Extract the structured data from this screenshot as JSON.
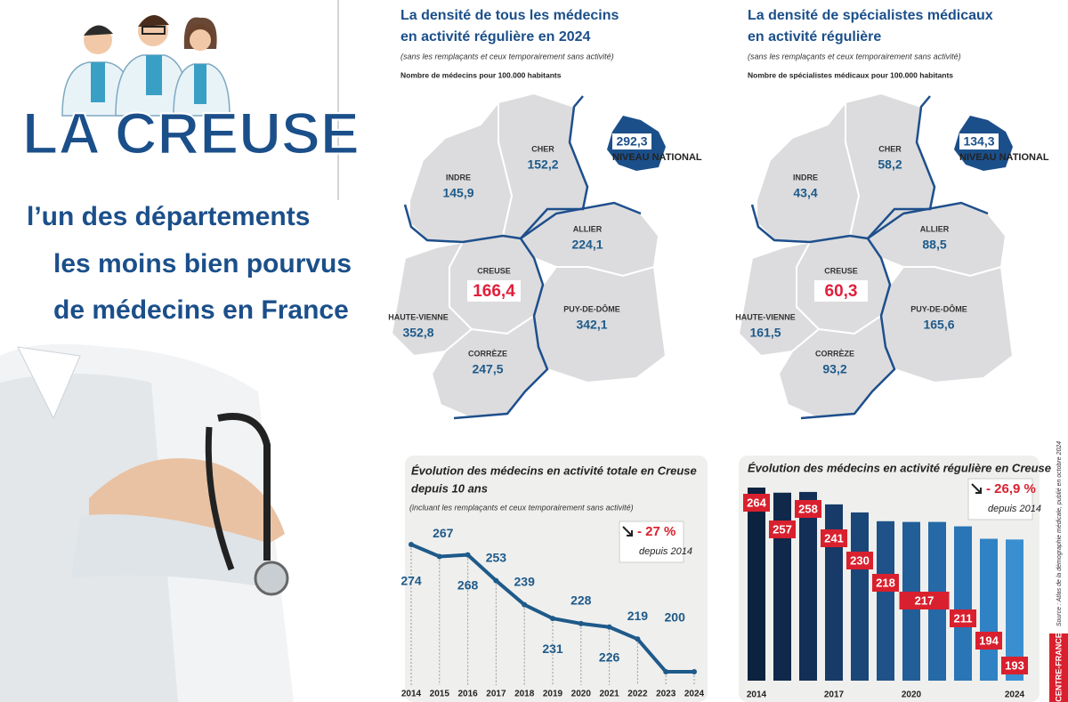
{
  "header": {
    "title": "LA CREUSE",
    "subtitle": [
      "l’un des départements",
      "les moins bien pourvus",
      "de médecins en France"
    ]
  },
  "maps": [
    {
      "title": [
        "La densité de tous les médecins",
        "en activité régulière en 2024"
      ],
      "note": "(sans les remplaçants et ceux temporairement sans activité)",
      "unit": "Nombre de médecins pour 100.000 habitants",
      "national": {
        "value": "292,3",
        "label": "NIVEAU NATIONAL"
      },
      "departments": [
        {
          "name": "CHER",
          "value": "152,2"
        },
        {
          "name": "INDRE",
          "value": "145,9"
        },
        {
          "name": "ALLIER",
          "value": "224,1"
        },
        {
          "name": "CREUSE",
          "value": "166,4"
        },
        {
          "name": "HAUTE-VIENNE",
          "value": "352,8"
        },
        {
          "name": "PUY-DE-DÔME",
          "value": "342,1"
        },
        {
          "name": "CORRÈZE",
          "value": "247,5"
        }
      ]
    },
    {
      "title": [
        "La densité de spécialistes médicaux",
        "en activité régulière"
      ],
      "note": "(sans les remplaçants et ceux temporairement sans activité)",
      "unit": "Nombre de spécialistes médicaux pour 100.000 habitants",
      "national": {
        "value": "134,3",
        "label": "NIVEAU NATIONAL"
      },
      "departments": [
        {
          "name": "CHER",
          "value": "58,2"
        },
        {
          "name": "INDRE",
          "value": "43,4"
        },
        {
          "name": "ALLIER",
          "value": "88,5"
        },
        {
          "name": "CREUSE",
          "value": "60,3"
        },
        {
          "name": "HAUTE-VIENNE",
          "value": "161,5"
        },
        {
          "name": "PUY-DE-DÔME",
          "value": "165,6"
        },
        {
          "name": "CORRÈZE",
          "value": "93,2"
        }
      ]
    }
  ],
  "chart_data": [
    {
      "type": "line",
      "title": [
        "Évolution des médecins en activité totale en Creuse",
        "depuis 10 ans"
      ],
      "subtitle": "(incluant les remplaçants et ceux temporairement sans activité)",
      "annotation": {
        "change": "- 27 %",
        "since": "depuis 2014"
      },
      "categories": [
        "2014",
        "2015",
        "2016",
        "2017",
        "2018",
        "2019",
        "2020",
        "2021",
        "2022",
        "2023",
        "2024"
      ],
      "values": [
        274,
        267,
        268,
        253,
        239,
        231,
        228,
        226,
        219,
        200,
        200
      ],
      "value_labels": [
        "274",
        "267",
        "268",
        "253",
        "239",
        "231",
        "228",
        "226",
        "219",
        "200",
        null
      ],
      "color": "#1e5a8a"
    },
    {
      "type": "bar",
      "title": "Évolution des médecins en activité régulière en Creuse",
      "annotation": {
        "change": "- 26,9 %",
        "since": "depuis 2014"
      },
      "categories": [
        "2014",
        null,
        null,
        "2017",
        null,
        null,
        "2020",
        null,
        null,
        null,
        "2024"
      ],
      "values": [
        264,
        257,
        258,
        241,
        230,
        218,
        217,
        217,
        211,
        194,
        193
      ],
      "value_labels": [
        "264",
        "257",
        "258",
        "241",
        "230",
        "218",
        "217",
        null,
        "211",
        "194",
        "193"
      ],
      "colors": [
        "#0c2340",
        "#10284a",
        "#132f57",
        "#173a68",
        "#1b4678",
        "#1f5288",
        "#225f98",
        "#2569a6",
        "#2a75b5",
        "#2f82c3",
        "#3a8fd0"
      ],
      "label_color": "#d9202e"
    }
  ],
  "source": "Source : Atlas de la démographie médicale, publié en octobre 2024",
  "logo": "CENTRE-FRANCE"
}
